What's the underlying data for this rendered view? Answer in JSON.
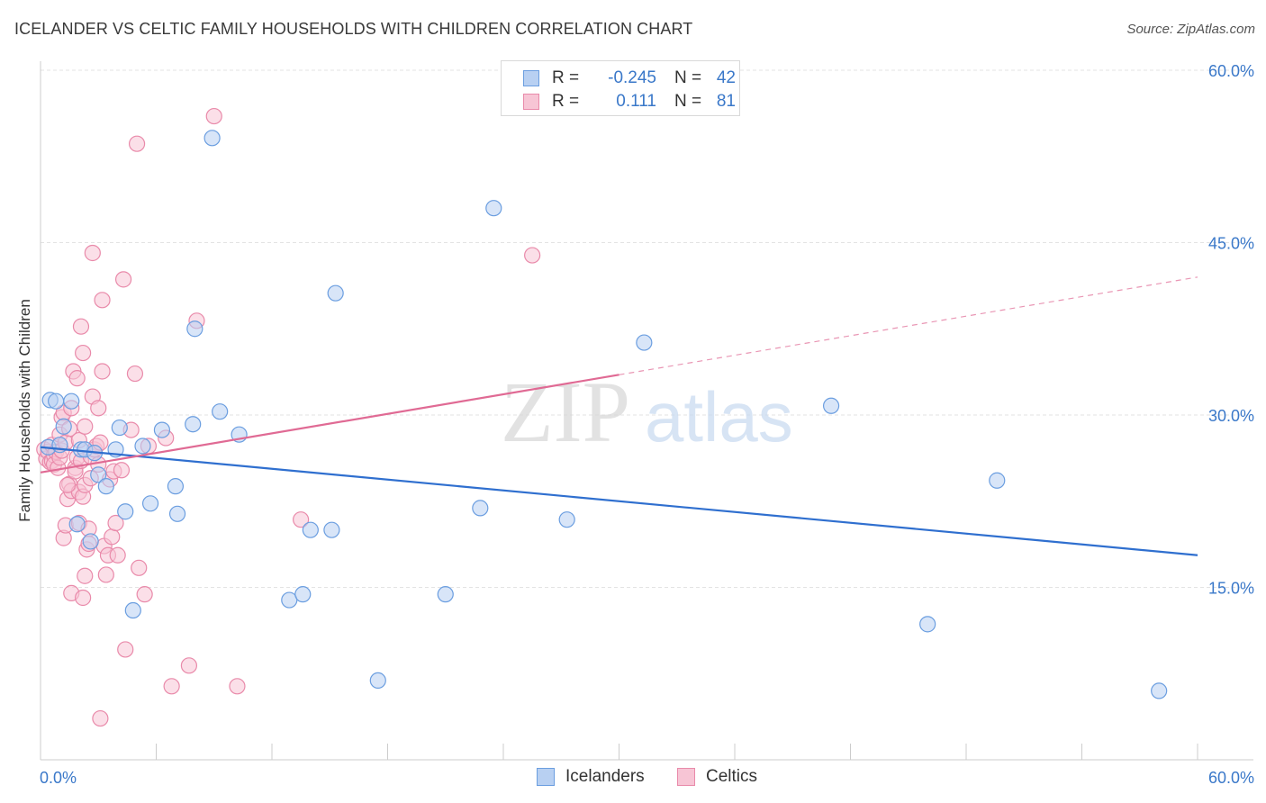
{
  "title": "ICELANDER VS CELTIC FAMILY HOUSEHOLDS WITH CHILDREN CORRELATION CHART",
  "source": "Source: ZipAtlas.com",
  "watermark": {
    "zip": "ZIP",
    "atlas": "atlas"
  },
  "colors": {
    "blue_fill": "#b8d0f2",
    "blue_stroke": "#6b9ee0",
    "blue_line": "#2f6fcf",
    "pink_fill": "#f7c5d5",
    "pink_stroke": "#e98aaa",
    "pink_line": "#e06a94",
    "tick": "#3a78c9",
    "grid": "#e3e3e3"
  },
  "legend": {
    "rows": [
      {
        "label": "R =",
        "r": "-0.245",
        "n_label": "N =",
        "n": "42"
      },
      {
        "label": "R =",
        "r": "0.111",
        "n_label": "N =",
        "n": "81"
      }
    ]
  },
  "chart_data": {
    "type": "scatter",
    "title": "ICELANDER VS CELTIC FAMILY HOUSEHOLDS WITH CHILDREN CORRELATION CHART",
    "xlabel": "",
    "ylabel": "Family Households with Children",
    "xlim": [
      0,
      60
    ],
    "ylim": [
      0,
      60
    ],
    "x_tick_labels": [
      "0.0%",
      "60.0%"
    ],
    "y_ticks": [
      15,
      30,
      45,
      60
    ],
    "y_tick_labels": [
      "15.0%",
      "30.0%",
      "45.0%",
      "60.0%"
    ],
    "grid": true,
    "legend_position": "top-center",
    "series": [
      {
        "name": "Icelanders",
        "r": -0.245,
        "n": 42,
        "trend": {
          "x": [
            0,
            60
          ],
          "y": [
            27.2,
            17.8
          ],
          "dashed_from": null
        },
        "points": [
          [
            0.4,
            27.2
          ],
          [
            0.5,
            31.3
          ],
          [
            0.8,
            31.2
          ],
          [
            1.0,
            27.4
          ],
          [
            1.2,
            29.0
          ],
          [
            1.6,
            31.2
          ],
          [
            1.9,
            20.5
          ],
          [
            2.1,
            27.0
          ],
          [
            2.3,
            27.0
          ],
          [
            2.6,
            19.0
          ],
          [
            2.8,
            26.7
          ],
          [
            3.0,
            24.8
          ],
          [
            3.4,
            23.8
          ],
          [
            3.9,
            27.0
          ],
          [
            4.1,
            28.9
          ],
          [
            4.4,
            21.6
          ],
          [
            4.8,
            13.0
          ],
          [
            5.3,
            27.3
          ],
          [
            5.7,
            22.3
          ],
          [
            6.3,
            28.7
          ],
          [
            7.0,
            23.8
          ],
          [
            7.1,
            21.4
          ],
          [
            7.9,
            29.2
          ],
          [
            8.0,
            37.5
          ],
          [
            8.9,
            54.1
          ],
          [
            9.3,
            30.3
          ],
          [
            10.3,
            28.3
          ],
          [
            12.9,
            13.9
          ],
          [
            13.6,
            14.4
          ],
          [
            14.0,
            20.0
          ],
          [
            15.3,
            40.6
          ],
          [
            15.1,
            20.0
          ],
          [
            17.5,
            6.9
          ],
          [
            21.0,
            14.4
          ],
          [
            22.8,
            21.9
          ],
          [
            23.5,
            48.0
          ],
          [
            27.3,
            20.9
          ],
          [
            31.3,
            36.3
          ],
          [
            41.0,
            30.8
          ],
          [
            46.0,
            11.8
          ],
          [
            49.6,
            24.3
          ],
          [
            58.0,
            6.0
          ]
        ]
      },
      {
        "name": "Celtics",
        "r": 0.111,
        "n": 81,
        "trend": {
          "x": [
            0,
            60
          ],
          "y": [
            25.0,
            42.0
          ],
          "dashed_from": 30
        },
        "points": [
          [
            0.2,
            27.0
          ],
          [
            0.3,
            26.2
          ],
          [
            0.4,
            26.8
          ],
          [
            0.5,
            25.9
          ],
          [
            0.6,
            27.4
          ],
          [
            0.6,
            26.0
          ],
          [
            0.7,
            26.5
          ],
          [
            0.7,
            25.7
          ],
          [
            0.8,
            26.8
          ],
          [
            0.9,
            25.4
          ],
          [
            1.0,
            26.3
          ],
          [
            1.1,
            26.9
          ],
          [
            1.0,
            28.3
          ],
          [
            1.1,
            29.8
          ],
          [
            1.2,
            30.2
          ],
          [
            1.2,
            19.3
          ],
          [
            1.3,
            27.6
          ],
          [
            1.3,
            20.4
          ],
          [
            1.4,
            22.7
          ],
          [
            1.5,
            28.8
          ],
          [
            1.5,
            24.0
          ],
          [
            1.6,
            23.4
          ],
          [
            1.6,
            14.5
          ],
          [
            1.6,
            30.6
          ],
          [
            1.7,
            33.8
          ],
          [
            1.8,
            25.4
          ],
          [
            1.8,
            25.1
          ],
          [
            1.9,
            26.3
          ],
          [
            1.9,
            33.2
          ],
          [
            2.0,
            23.3
          ],
          [
            2.0,
            20.6
          ],
          [
            2.0,
            27.8
          ],
          [
            2.1,
            26.0
          ],
          [
            2.1,
            37.7
          ],
          [
            2.2,
            35.4
          ],
          [
            2.2,
            22.9
          ],
          [
            2.3,
            23.9
          ],
          [
            2.3,
            29.0
          ],
          [
            2.3,
            16.0
          ],
          [
            2.4,
            18.3
          ],
          [
            2.5,
            18.8
          ],
          [
            2.5,
            20.1
          ],
          [
            2.6,
            24.5
          ],
          [
            2.6,
            26.4
          ],
          [
            2.7,
            31.6
          ],
          [
            2.7,
            44.1
          ],
          [
            2.8,
            27.0
          ],
          [
            2.9,
            27.3
          ],
          [
            3.0,
            30.6
          ],
          [
            3.0,
            25.7
          ],
          [
            3.1,
            27.6
          ],
          [
            3.2,
            33.8
          ],
          [
            3.2,
            40.0
          ],
          [
            3.3,
            18.6
          ],
          [
            3.4,
            16.1
          ],
          [
            3.5,
            17.8
          ],
          [
            3.6,
            24.4
          ],
          [
            3.7,
            19.4
          ],
          [
            3.8,
            25.1
          ],
          [
            3.9,
            20.6
          ],
          [
            4.0,
            17.8
          ],
          [
            4.2,
            25.2
          ],
          [
            4.3,
            41.8
          ],
          [
            4.4,
            9.6
          ],
          [
            4.7,
            28.7
          ],
          [
            4.9,
            33.6
          ],
          [
            5.0,
            53.6
          ],
          [
            5.1,
            16.7
          ],
          [
            5.4,
            14.4
          ],
          [
            5.6,
            27.3
          ],
          [
            6.5,
            28.0
          ],
          [
            6.8,
            6.4
          ],
          [
            7.7,
            8.2
          ],
          [
            8.1,
            38.2
          ],
          [
            9.0,
            56.0
          ],
          [
            10.2,
            6.4
          ],
          [
            13.5,
            20.9
          ],
          [
            25.5,
            43.9
          ],
          [
            3.1,
            3.6
          ],
          [
            2.2,
            14.1
          ],
          [
            1.4,
            23.9
          ]
        ]
      }
    ]
  },
  "bottom_legend": [
    {
      "label": "Icelanders"
    },
    {
      "label": "Celtics"
    }
  ]
}
